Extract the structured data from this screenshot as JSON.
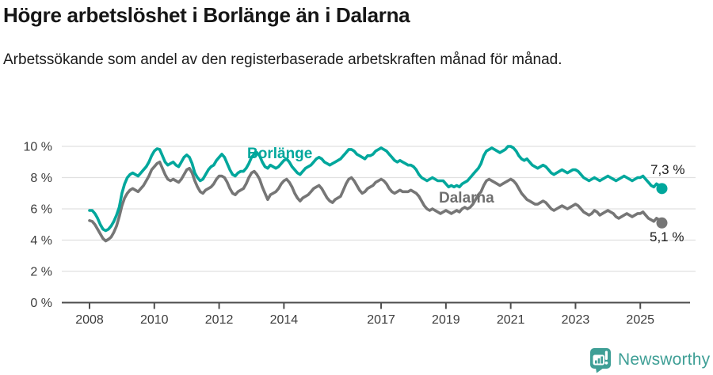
{
  "header": {
    "title": "Högre arbetslöshet i Borlänge än i Dalarna",
    "subtitle": "Arbetssökande som andel av den registerbaserade arbetskraften månad för månad."
  },
  "chart_data": {
    "type": "line",
    "title": "Högre arbetslöshet i Borlänge än i Dalarna",
    "x_unit": "month",
    "x_range": [
      "2008-01",
      "2025-09"
    ],
    "x_tick_years": [
      2008,
      2010,
      2012,
      2014,
      2017,
      2019,
      2021,
      2023,
      2025
    ],
    "x_tick_labels": [
      "2008",
      "2010",
      "2012",
      "2014",
      "2017",
      "2019",
      "2021",
      "2023",
      "2025"
    ],
    "y_ticks": [
      0,
      2,
      4,
      6,
      8,
      10
    ],
    "y_tick_labels": [
      "0 %",
      "2 %",
      "4 %",
      "6 %",
      "8 %",
      "10 %"
    ],
    "ylim": [
      0,
      10
    ],
    "grid": true,
    "legend_position": "inline-labels",
    "series": [
      {
        "name": "Borlänge",
        "color": "#00a79c",
        "end_label": "7,3 %",
        "end_value": 7.3,
        "values": [
          5.9,
          5.9,
          5.7,
          5.4,
          5.0,
          4.7,
          4.6,
          4.7,
          4.9,
          5.2,
          5.6,
          6.1,
          7.0,
          7.6,
          8.0,
          8.2,
          8.3,
          8.2,
          8.1,
          8.3,
          8.5,
          8.7,
          9.0,
          9.4,
          9.7,
          9.85,
          9.8,
          9.4,
          9.0,
          8.8,
          8.9,
          9.0,
          8.8,
          8.7,
          9.0,
          9.3,
          9.45,
          9.3,
          8.9,
          8.3,
          8.0,
          7.8,
          7.9,
          8.2,
          8.5,
          8.7,
          8.8,
          9.1,
          9.3,
          9.5,
          9.3,
          8.9,
          8.5,
          8.2,
          8.1,
          8.3,
          8.4,
          8.4,
          8.6,
          8.9,
          9.3,
          9.5,
          9.6,
          9.4,
          9.0,
          8.7,
          8.6,
          8.8,
          8.7,
          8.6,
          8.7,
          8.9,
          9.1,
          9.2,
          9.0,
          8.7,
          8.5,
          8.3,
          8.2,
          8.4,
          8.6,
          8.7,
          8.8,
          9.0,
          9.2,
          9.3,
          9.2,
          9.0,
          8.9,
          8.8,
          8.9,
          9.0,
          9.1,
          9.2,
          9.4,
          9.6,
          9.8,
          9.8,
          9.7,
          9.5,
          9.4,
          9.3,
          9.2,
          9.4,
          9.4,
          9.5,
          9.7,
          9.8,
          9.9,
          9.8,
          9.7,
          9.5,
          9.3,
          9.1,
          9.0,
          9.1,
          9.0,
          8.9,
          8.8,
          8.8,
          8.7,
          8.5,
          8.2,
          8.0,
          7.9,
          7.8,
          7.9,
          8.0,
          7.9,
          7.8,
          7.8,
          7.8,
          7.6,
          7.4,
          7.5,
          7.4,
          7.5,
          7.4,
          7.6,
          7.7,
          7.8,
          8.0,
          8.2,
          8.4,
          8.6,
          8.9,
          9.4,
          9.7,
          9.8,
          9.9,
          9.8,
          9.7,
          9.6,
          9.7,
          9.8,
          10.0,
          10.0,
          9.9,
          9.7,
          9.4,
          9.2,
          9.1,
          9.2,
          9.0,
          8.8,
          8.7,
          8.6,
          8.7,
          8.8,
          8.7,
          8.5,
          8.3,
          8.2,
          8.3,
          8.4,
          8.5,
          8.4,
          8.3,
          8.4,
          8.5,
          8.5,
          8.4,
          8.2,
          8.0,
          7.9,
          7.8,
          7.9,
          8.0,
          7.9,
          7.8,
          7.9,
          8.0,
          8.1,
          8.0,
          7.9,
          7.8,
          7.9,
          8.0,
          8.1,
          8.0,
          7.9,
          7.8,
          7.9,
          8.0,
          8.0,
          8.1,
          7.9,
          7.7,
          7.5,
          7.4,
          7.6,
          7.5,
          7.3
        ]
      },
      {
        "name": "Dalarna",
        "color": "#767676",
        "end_label": "5,1 %",
        "end_value": 5.1,
        "values": [
          5.25,
          5.2,
          5.0,
          4.7,
          4.4,
          4.1,
          3.95,
          4.05,
          4.2,
          4.5,
          4.9,
          5.5,
          6.2,
          6.7,
          7.0,
          7.2,
          7.3,
          7.2,
          7.1,
          7.3,
          7.5,
          7.8,
          8.1,
          8.5,
          8.7,
          8.9,
          9.0,
          8.6,
          8.2,
          7.9,
          7.8,
          7.9,
          7.8,
          7.7,
          7.9,
          8.2,
          8.5,
          8.6,
          8.3,
          7.8,
          7.4,
          7.1,
          7.0,
          7.2,
          7.3,
          7.4,
          7.6,
          7.9,
          8.1,
          8.1,
          8.0,
          7.7,
          7.3,
          7.0,
          6.9,
          7.1,
          7.2,
          7.3,
          7.6,
          8.0,
          8.3,
          8.4,
          8.2,
          7.9,
          7.4,
          7.0,
          6.6,
          6.9,
          7.0,
          7.1,
          7.3,
          7.6,
          7.8,
          7.9,
          7.7,
          7.4,
          7.0,
          6.7,
          6.5,
          6.7,
          6.8,
          6.9,
          7.1,
          7.3,
          7.4,
          7.5,
          7.3,
          7.0,
          6.7,
          6.5,
          6.4,
          6.6,
          6.7,
          6.8,
          7.2,
          7.6,
          7.9,
          8.0,
          7.8,
          7.5,
          7.2,
          7.0,
          7.1,
          7.3,
          7.4,
          7.5,
          7.7,
          7.8,
          7.9,
          7.8,
          7.6,
          7.3,
          7.1,
          7.0,
          7.1,
          7.2,
          7.1,
          7.1,
          7.1,
          7.2,
          7.1,
          7.0,
          6.8,
          6.5,
          6.2,
          6.0,
          5.9,
          6.0,
          5.9,
          5.8,
          5.7,
          5.8,
          5.9,
          5.8,
          5.7,
          5.8,
          5.9,
          5.8,
          6.0,
          6.1,
          6.0,
          6.1,
          6.3,
          6.6,
          6.9,
          7.1,
          7.5,
          7.8,
          7.9,
          7.8,
          7.7,
          7.6,
          7.5,
          7.6,
          7.7,
          7.8,
          7.9,
          7.8,
          7.6,
          7.3,
          7.0,
          6.8,
          6.6,
          6.5,
          6.4,
          6.3,
          6.3,
          6.4,
          6.5,
          6.4,
          6.2,
          6.0,
          5.9,
          6.0,
          6.1,
          6.2,
          6.1,
          6.0,
          6.1,
          6.2,
          6.3,
          6.2,
          6.0,
          5.8,
          5.7,
          5.6,
          5.7,
          5.9,
          5.8,
          5.6,
          5.7,
          5.8,
          5.9,
          5.8,
          5.7,
          5.5,
          5.4,
          5.5,
          5.6,
          5.7,
          5.6,
          5.5,
          5.6,
          5.7,
          5.7,
          5.8,
          5.6,
          5.4,
          5.3,
          5.2,
          5.4,
          5.3,
          5.1
        ]
      }
    ],
    "style": {
      "grid_color": "#e0e0e0",
      "axis_color": "#4d4d4d",
      "tick_label_color": "#3d3d3d"
    }
  },
  "footer": {
    "brand_name": "Newsworthy",
    "brand_color": "#3f9f96"
  }
}
